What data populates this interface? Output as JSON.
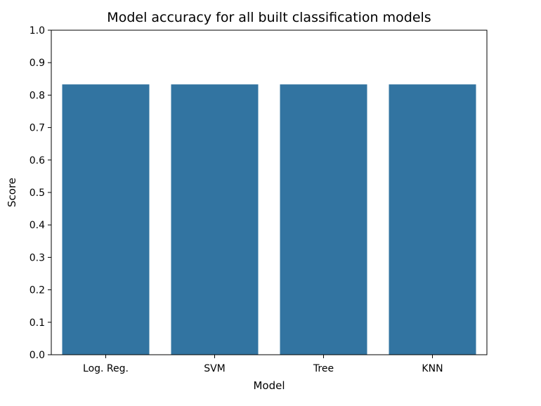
{
  "chart_data": {
    "type": "bar",
    "title": "Model accuracy for all built classification models",
    "xlabel": "Model",
    "ylabel": "Score",
    "categories": [
      "Log. Reg.",
      "SVM",
      "Tree",
      "KNN"
    ],
    "values": [
      0.833,
      0.833,
      0.833,
      0.833
    ],
    "ylim": [
      0,
      1.0
    ],
    "yticks": [
      "0.0",
      "0.1",
      "0.2",
      "0.3",
      "0.4",
      "0.5",
      "0.6",
      "0.7",
      "0.8",
      "0.9",
      "1.0"
    ],
    "grid": false,
    "legend": "none",
    "bar_color": "#3274a1"
  }
}
